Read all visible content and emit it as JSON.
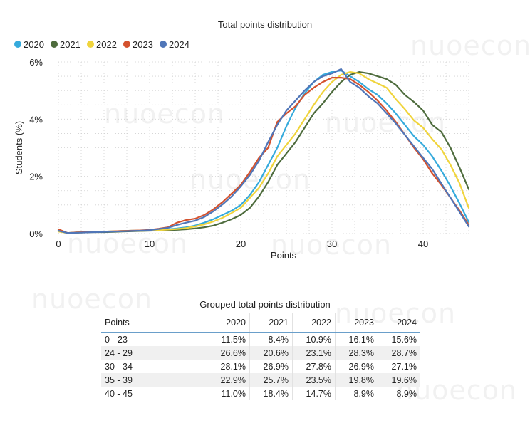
{
  "watermark": "nuoecon",
  "chart_data": {
    "type": "line",
    "title": "Total points distribution",
    "xlabel": "Points",
    "ylabel": "Students (%)",
    "xlim": [
      0,
      45
    ],
    "ylim": [
      0,
      6
    ],
    "xticks": [
      0,
      10,
      20,
      30,
      40
    ],
    "yticks": [
      0,
      2,
      4,
      6
    ],
    "ytick_labels": [
      "0%",
      "2%",
      "4%",
      "6%"
    ],
    "grid": "dotted",
    "legend_position": "top-left",
    "x": [
      0,
      1,
      2,
      3,
      4,
      5,
      6,
      7,
      8,
      9,
      10,
      11,
      12,
      13,
      14,
      15,
      16,
      17,
      18,
      19,
      20,
      21,
      22,
      23,
      24,
      25,
      26,
      27,
      28,
      29,
      30,
      31,
      32,
      33,
      34,
      35,
      36,
      37,
      38,
      39,
      40,
      41,
      42,
      43,
      44,
      45
    ],
    "series": [
      {
        "name": "2020",
        "color": "#35aadc",
        "values": [
          0.12,
          0.02,
          0.04,
          0.05,
          0.06,
          0.07,
          0.08,
          0.09,
          0.1,
          0.1,
          0.11,
          0.13,
          0.15,
          0.18,
          0.22,
          0.28,
          0.38,
          0.5,
          0.65,
          0.8,
          1.0,
          1.35,
          1.8,
          2.4,
          3.0,
          3.75,
          4.4,
          4.9,
          5.3,
          5.55,
          5.65,
          5.7,
          5.5,
          5.3,
          5.05,
          4.85,
          4.55,
          4.2,
          3.8,
          3.4,
          3.1,
          2.7,
          2.2,
          1.65,
          1.05,
          0.4
        ]
      },
      {
        "name": "2021",
        "color": "#4e6c3d",
        "values": [
          0.08,
          0.02,
          0.03,
          0.04,
          0.05,
          0.05,
          0.06,
          0.07,
          0.08,
          0.09,
          0.1,
          0.11,
          0.12,
          0.13,
          0.15,
          0.18,
          0.22,
          0.28,
          0.38,
          0.5,
          0.65,
          0.9,
          1.3,
          1.8,
          2.4,
          2.8,
          3.2,
          3.7,
          4.2,
          4.55,
          4.95,
          5.3,
          5.55,
          5.65,
          5.6,
          5.5,
          5.4,
          5.2,
          4.85,
          4.6,
          4.3,
          3.8,
          3.55,
          3.0,
          2.3,
          1.55
        ]
      },
      {
        "name": "2022",
        "color": "#f0d43c",
        "values": [
          0.07,
          0.02,
          0.04,
          0.05,
          0.06,
          0.07,
          0.08,
          0.09,
          0.1,
          0.1,
          0.11,
          0.12,
          0.14,
          0.16,
          0.19,
          0.25,
          0.32,
          0.42,
          0.55,
          0.72,
          0.9,
          1.25,
          1.6,
          2.1,
          2.7,
          3.1,
          3.5,
          4.0,
          4.5,
          4.95,
          5.3,
          5.55,
          5.65,
          5.6,
          5.4,
          5.25,
          5.1,
          4.7,
          4.35,
          3.95,
          3.7,
          3.3,
          2.95,
          2.4,
          1.75,
          0.9
        ]
      },
      {
        "name": "2023",
        "color": "#d4522e",
        "values": [
          0.15,
          0.02,
          0.04,
          0.05,
          0.06,
          0.07,
          0.08,
          0.09,
          0.1,
          0.11,
          0.13,
          0.17,
          0.22,
          0.38,
          0.47,
          0.52,
          0.65,
          0.85,
          1.1,
          1.4,
          1.7,
          2.15,
          2.65,
          3.0,
          3.9,
          4.2,
          4.45,
          4.85,
          5.1,
          5.3,
          5.45,
          5.45,
          5.4,
          5.2,
          4.95,
          4.65,
          4.3,
          3.9,
          3.45,
          3.0,
          2.6,
          2.1,
          1.7,
          1.25,
          0.8,
          0.3
        ]
      },
      {
        "name": "2024",
        "color": "#5076b8",
        "values": [
          0.1,
          0.02,
          0.03,
          0.04,
          0.05,
          0.06,
          0.07,
          0.08,
          0.09,
          0.1,
          0.12,
          0.16,
          0.2,
          0.3,
          0.38,
          0.45,
          0.58,
          0.78,
          1.02,
          1.3,
          1.65,
          2.05,
          2.55,
          3.2,
          3.8,
          4.3,
          4.65,
          5.0,
          5.3,
          5.5,
          5.6,
          5.75,
          5.3,
          5.1,
          4.8,
          4.55,
          4.2,
          3.85,
          3.45,
          3.05,
          2.65,
          2.25,
          1.75,
          1.25,
          0.75,
          0.25
        ]
      }
    ]
  },
  "table": {
    "title": "Grouped total points distribution",
    "headers": [
      "Points",
      "2020",
      "2021",
      "2022",
      "2023",
      "2024"
    ],
    "rows": [
      [
        "0 - 23",
        "11.5%",
        "8.4%",
        "10.9%",
        "16.1%",
        "15.6%"
      ],
      [
        "24 - 29",
        "26.6%",
        "20.6%",
        "23.1%",
        "28.3%",
        "28.7%"
      ],
      [
        "30 - 34",
        "28.1%",
        "26.9%",
        "27.8%",
        "26.9%",
        "27.1%"
      ],
      [
        "35 - 39",
        "22.9%",
        "25.7%",
        "23.5%",
        "19.8%",
        "19.6%"
      ],
      [
        "40 - 45",
        "11.0%",
        "18.4%",
        "14.7%",
        "8.9%",
        "8.9%"
      ]
    ]
  }
}
